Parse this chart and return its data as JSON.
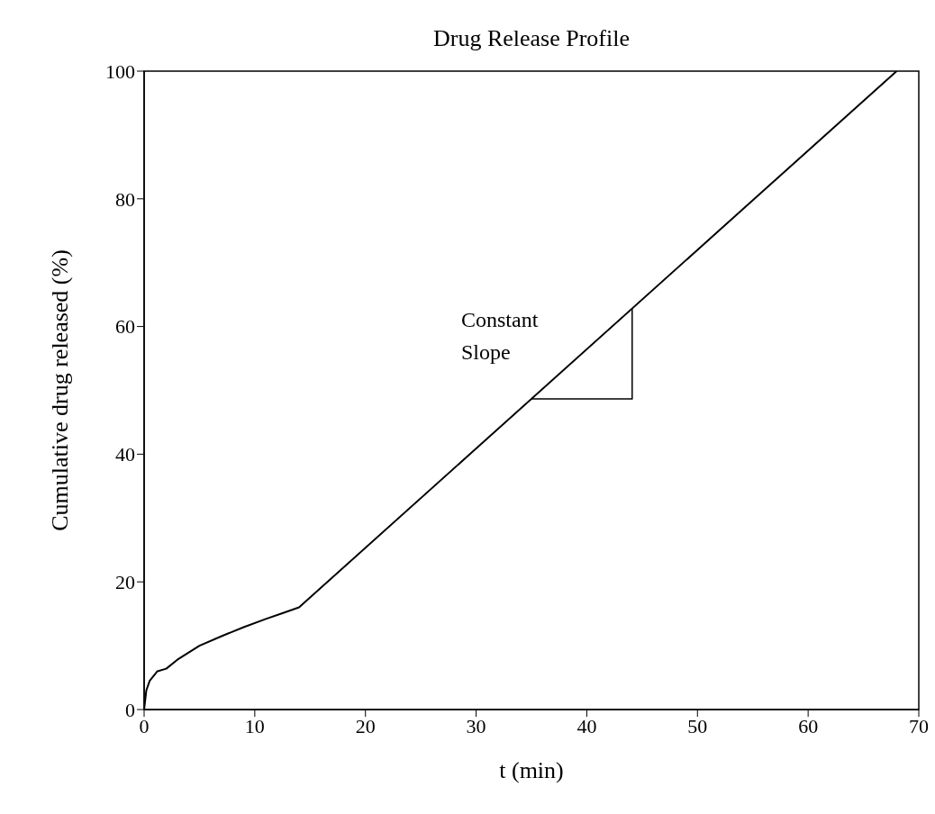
{
  "chart_data": {
    "type": "line",
    "title": "Drug Release Profile",
    "xlabel": "t (min)",
    "ylabel": "Cumulative drug released (%)",
    "x": [
      0,
      0.2,
      0.5,
      1.2,
      2,
      3,
      4,
      5,
      7,
      9,
      11,
      12.5,
      14,
      68
    ],
    "series": [
      {
        "color": "#000000",
        "values": [
          0,
          3,
          4.5,
          6,
          6.4,
          7.8,
          8.9,
          10,
          11.5,
          12.9,
          14.2,
          15.1,
          16,
          100
        ]
      }
    ],
    "xlim": [
      0,
      70
    ],
    "xticks": [
      0,
      10,
      20,
      30,
      40,
      50,
      60,
      70
    ],
    "ylim": [
      0,
      100
    ],
    "yticks": [
      0,
      20,
      40,
      60,
      80,
      100
    ],
    "annotations": [
      "Constant Slope"
    ],
    "grid": false,
    "legend": false,
    "marker": "none",
    "line_style": "solid"
  }
}
